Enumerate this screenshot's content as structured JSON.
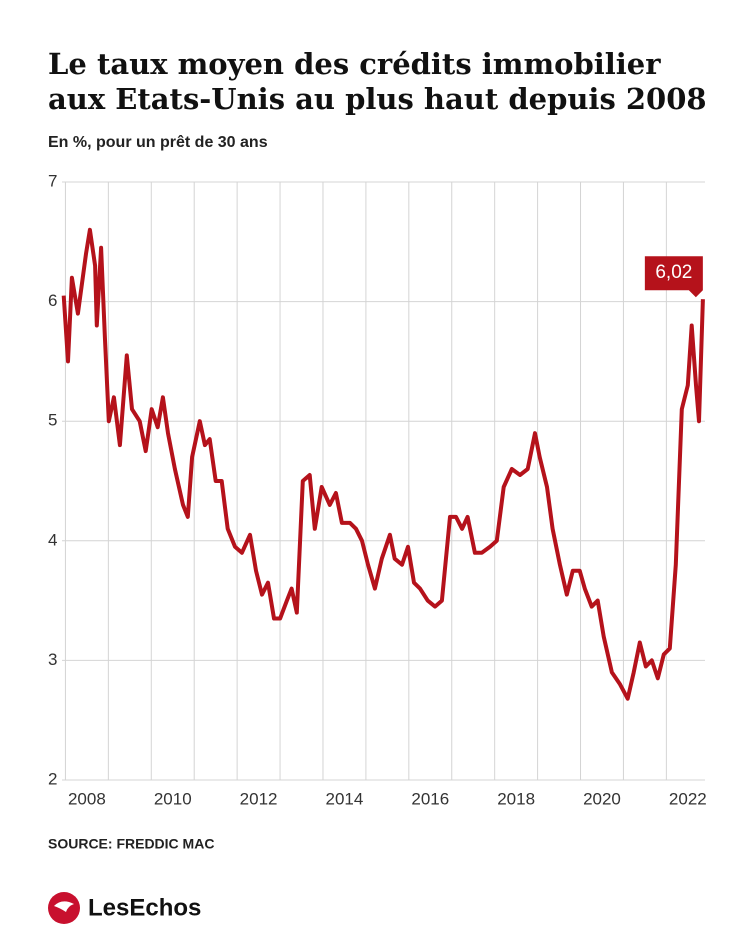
{
  "chart_data": {
    "type": "line",
    "title": [
      "Le taux moyen des crédits immobilier",
      "aux Etats-Unis au plus haut depuis 2008"
    ],
    "subtitle": "En %, pour un prêt de 30 ans",
    "source": "SOURCE: FREDDIC MAC",
    "brand": "LesEchos",
    "x": [
      2007.46,
      2007.56,
      2007.65,
      2007.79,
      2007.98,
      2008.07,
      2008.19,
      2008.23,
      2008.33,
      2008.42,
      2008.51,
      2008.63,
      2008.77,
      2008.93,
      2009.05,
      2009.23,
      2009.37,
      2009.51,
      2009.65,
      2009.77,
      2009.89,
      2010.05,
      2010.24,
      2010.35,
      2010.45,
      2010.63,
      2010.75,
      2010.86,
      2011.0,
      2011.14,
      2011.28,
      2011.45,
      2011.61,
      2011.8,
      2011.94,
      2012.08,
      2012.22,
      2012.36,
      2012.5,
      2012.66,
      2012.77,
      2012.89,
      2013.03,
      2013.19,
      2013.31,
      2013.47,
      2013.66,
      2013.8,
      2013.94,
      2014.13,
      2014.27,
      2014.41,
      2014.55,
      2014.71,
      2014.87,
      2015.06,
      2015.17,
      2015.34,
      2015.48,
      2015.62,
      2015.76,
      2015.94,
      2016.11,
      2016.27,
      2016.46,
      2016.6,
      2016.74,
      2016.87,
      2017.04,
      2017.2,
      2017.39,
      2017.55,
      2017.71,
      2017.9,
      2018.09,
      2018.27,
      2018.44,
      2018.55,
      2018.72,
      2018.85,
      2019.02,
      2019.18,
      2019.32,
      2019.48,
      2019.6,
      2019.76,
      2019.9,
      2020.04,
      2020.23,
      2020.42,
      2020.6,
      2020.74,
      2020.88,
      2021.02,
      2021.16,
      2021.3,
      2021.44,
      2021.58,
      2021.72,
      2021.86,
      2022.0,
      2022.09,
      2022.19,
      2022.26,
      2022.35
    ],
    "series": [
      {
        "color": "#b5121b",
        "end_label": "6,02",
        "values": [
          6.05,
          5.5,
          6.2,
          5.9,
          6.4,
          6.6,
          6.3,
          5.8,
          6.45,
          5.7,
          5.0,
          5.2,
          4.8,
          5.55,
          5.1,
          5.0,
          4.75,
          5.1,
          4.95,
          5.2,
          4.9,
          4.6,
          4.3,
          4.2,
          4.7,
          5.0,
          4.8,
          4.85,
          4.5,
          4.5,
          4.1,
          3.95,
          3.9,
          4.05,
          3.75,
          3.55,
          3.65,
          3.35,
          3.35,
          3.5,
          3.6,
          3.4,
          4.5,
          4.55,
          4.1,
          4.45,
          4.3,
          4.4,
          4.15,
          4.15,
          4.1,
          4.0,
          3.8,
          3.6,
          3.85,
          4.05,
          3.85,
          3.8,
          3.95,
          3.65,
          3.6,
          3.5,
          3.45,
          3.5,
          4.2,
          4.2,
          4.1,
          4.2,
          3.9,
          3.9,
          3.95,
          4.0,
          4.45,
          4.6,
          4.55,
          4.6,
          4.9,
          4.7,
          4.45,
          4.1,
          3.8,
          3.55,
          3.75,
          3.75,
          3.6,
          3.45,
          3.5,
          3.2,
          2.9,
          2.8,
          2.68,
          2.9,
          3.15,
          2.95,
          3.0,
          2.85,
          3.05,
          3.1,
          3.8,
          5.1,
          5.3,
          5.8,
          5.3,
          5.0,
          6.02
        ]
      }
    ],
    "xlim": [
      2007.42,
      2022.4
    ],
    "xticks": [
      2008,
      2010,
      2012,
      2014,
      2016,
      2018,
      2020,
      2022
    ],
    "ylim": [
      2,
      7
    ],
    "yticks": [
      2,
      3,
      4,
      5,
      6,
      7
    ],
    "grid": true
  }
}
